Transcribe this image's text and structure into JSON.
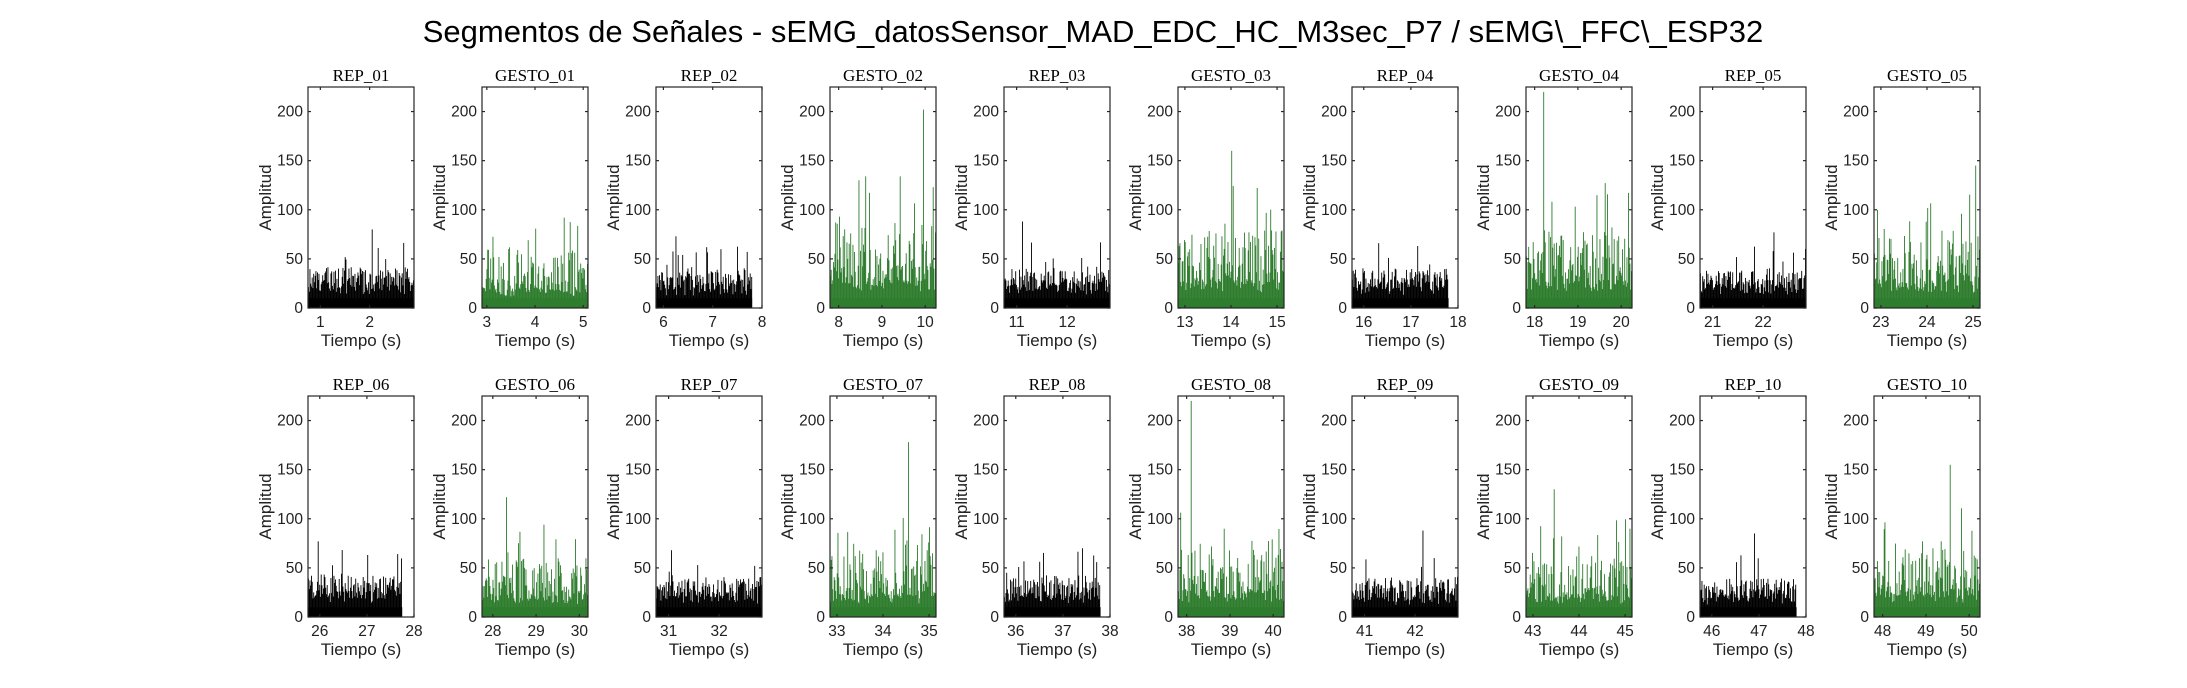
{
  "figure": {
    "title": "Segmentos de Señales - sEMG_datosSensor_MAD_EDC_HC_M3sec_P7 / sEMG\\_FFC\\_ESP32"
  },
  "colors": {
    "rep": "#000000",
    "gesto": "#2e7d2e"
  },
  "chart_data": [
    {
      "type": "bar",
      "title": "REP_01",
      "xlabel": "Tiempo (s)",
      "ylabel": "Amplitud",
      "xlim": [
        0.75,
        2.9
      ],
      "ylim": [
        0,
        225
      ],
      "xticks": [
        1,
        2
      ],
      "yticks": [
        0,
        50,
        100,
        150,
        200
      ],
      "t_start": 0.75,
      "t_end": 2.9,
      "mean": 28,
      "peak": 80,
      "peak_t": 2.05,
      "color": "rep"
    },
    {
      "type": "bar",
      "title": "GESTO_01",
      "xlabel": "Tiempo (s)",
      "ylabel": "Amplitud",
      "xlim": [
        2.9,
        5.1
      ],
      "ylim": [
        0,
        225
      ],
      "xticks": [
        3,
        4,
        5
      ],
      "yticks": [
        0,
        50,
        100,
        150,
        200
      ],
      "t_start": 2.9,
      "t_end": 5.1,
      "mean": 32,
      "peak": 92,
      "peak_t": 4.6,
      "color": "gesto"
    },
    {
      "type": "bar",
      "title": "REP_02",
      "xlabel": "Tiempo (s)",
      "ylabel": "Amplitud",
      "xlim": [
        5.85,
        8.0
      ],
      "ylim": [
        0,
        225
      ],
      "xticks": [
        6,
        7,
        8
      ],
      "yticks": [
        0,
        50,
        100,
        150,
        200
      ],
      "t_start": 5.85,
      "t_end": 7.8,
      "mean": 27,
      "peak": 73,
      "peak_t": 6.25,
      "color": "rep"
    },
    {
      "type": "bar",
      "title": "GESTO_02",
      "xlabel": "Tiempo (s)",
      "ylabel": "Amplitud",
      "xlim": [
        7.8,
        10.25
      ],
      "ylim": [
        0,
        225
      ],
      "xticks": [
        8,
        9,
        10
      ],
      "yticks": [
        0,
        50,
        100,
        150,
        200
      ],
      "t_start": 7.8,
      "t_end": 10.25,
      "mean": 48,
      "peak": 202,
      "peak_t": 9.95,
      "color": "gesto"
    },
    {
      "type": "bar",
      "title": "REP_03",
      "xlabel": "Tiempo (s)",
      "ylabel": "Amplitud",
      "xlim": [
        10.75,
        12.85
      ],
      "ylim": [
        0,
        225
      ],
      "xticks": [
        11,
        12
      ],
      "yticks": [
        0,
        50,
        100,
        150,
        200
      ],
      "t_start": 10.75,
      "t_end": 12.85,
      "mean": 28,
      "peak": 88,
      "peak_t": 11.1,
      "color": "rep"
    },
    {
      "type": "bar",
      "title": "GESTO_03",
      "xlabel": "Tiempo (s)",
      "ylabel": "Amplitud",
      "xlim": [
        12.85,
        15.15
      ],
      "ylim": [
        0,
        225
      ],
      "xticks": [
        13,
        14,
        15
      ],
      "yticks": [
        0,
        50,
        100,
        150,
        200
      ],
      "t_start": 12.85,
      "t_end": 15.15,
      "mean": 45,
      "peak": 160,
      "peak_t": 14.0,
      "color": "gesto"
    },
    {
      "type": "bar",
      "title": "REP_04",
      "xlabel": "Tiempo (s)",
      "ylabel": "Amplitud",
      "xlim": [
        15.75,
        18.0
      ],
      "ylim": [
        0,
        225
      ],
      "xticks": [
        16,
        17,
        18
      ],
      "yticks": [
        0,
        50,
        100,
        150,
        200
      ],
      "t_start": 15.75,
      "t_end": 17.8,
      "mean": 27,
      "peak": 66,
      "peak_t": 16.3,
      "color": "rep"
    },
    {
      "type": "bar",
      "title": "GESTO_04",
      "xlabel": "Tiempo (s)",
      "ylabel": "Amplitud",
      "xlim": [
        17.8,
        20.25
      ],
      "ylim": [
        0,
        225
      ],
      "xticks": [
        18,
        19,
        20
      ],
      "yticks": [
        0,
        50,
        100,
        150,
        200
      ],
      "t_start": 17.8,
      "t_end": 20.25,
      "mean": 46,
      "peak": 220,
      "peak_t": 18.2,
      "color": "gesto"
    },
    {
      "type": "bar",
      "title": "REP_05",
      "xlabel": "Tiempo (s)",
      "ylabel": "Amplitud",
      "xlim": [
        20.75,
        22.85
      ],
      "ylim": [
        0,
        225
      ],
      "xticks": [
        21,
        22
      ],
      "yticks": [
        0,
        50,
        100,
        150,
        200
      ],
      "t_start": 20.75,
      "t_end": 22.85,
      "mean": 27,
      "peak": 77,
      "peak_t": 22.2,
      "color": "rep"
    },
    {
      "type": "bar",
      "title": "GESTO_05",
      "xlabel": "Tiempo (s)",
      "ylabel": "Amplitud",
      "xlim": [
        22.85,
        25.15
      ],
      "ylim": [
        0,
        225
      ],
      "xticks": [
        23,
        24,
        25
      ],
      "yticks": [
        0,
        50,
        100,
        150,
        200
      ],
      "t_start": 22.85,
      "t_end": 25.15,
      "mean": 42,
      "peak": 145,
      "peak_t": 25.05,
      "color": "gesto"
    },
    {
      "type": "bar",
      "title": "REP_06",
      "xlabel": "Tiempo (s)",
      "ylabel": "Amplitud",
      "xlim": [
        25.75,
        28.0
      ],
      "ylim": [
        0,
        225
      ],
      "xticks": [
        26,
        27,
        28
      ],
      "yticks": [
        0,
        50,
        100,
        150,
        200
      ],
      "t_start": 25.75,
      "t_end": 27.75,
      "mean": 29,
      "peak": 77,
      "peak_t": 25.95,
      "color": "rep"
    },
    {
      "type": "bar",
      "title": "GESTO_06",
      "xlabel": "Tiempo (s)",
      "ylabel": "Amplitud",
      "xlim": [
        27.75,
        30.2
      ],
      "ylim": [
        0,
        225
      ],
      "xticks": [
        28,
        29,
        30
      ],
      "yticks": [
        0,
        50,
        100,
        150,
        200
      ],
      "t_start": 27.75,
      "t_end": 30.2,
      "mean": 35,
      "peak": 122,
      "peak_t": 28.3,
      "color": "gesto"
    },
    {
      "type": "bar",
      "title": "REP_07",
      "xlabel": "Tiempo (s)",
      "ylabel": "Amplitud",
      "xlim": [
        30.75,
        32.85
      ],
      "ylim": [
        0,
        225
      ],
      "xticks": [
        31,
        32
      ],
      "yticks": [
        0,
        50,
        100,
        150,
        200
      ],
      "t_start": 30.75,
      "t_end": 32.85,
      "mean": 28,
      "peak": 68,
      "peak_t": 31.05,
      "color": "rep"
    },
    {
      "type": "bar",
      "title": "GESTO_07",
      "xlabel": "Tiempo (s)",
      "ylabel": "Amplitud",
      "xlim": [
        32.85,
        35.15
      ],
      "ylim": [
        0,
        225
      ],
      "xticks": [
        33,
        34,
        35
      ],
      "yticks": [
        0,
        50,
        100,
        150,
        200
      ],
      "t_start": 32.85,
      "t_end": 35.15,
      "mean": 38,
      "peak": 178,
      "peak_t": 34.55,
      "color": "gesto"
    },
    {
      "type": "bar",
      "title": "REP_08",
      "xlabel": "Tiempo (s)",
      "ylabel": "Amplitud",
      "xlim": [
        35.75,
        38.0
      ],
      "ylim": [
        0,
        225
      ],
      "xticks": [
        36,
        37,
        38
      ],
      "yticks": [
        0,
        50,
        100,
        150,
        200
      ],
      "t_start": 35.75,
      "t_end": 37.8,
      "mean": 28,
      "peak": 70,
      "peak_t": 37.4,
      "color": "rep"
    },
    {
      "type": "bar",
      "title": "GESTO_08",
      "xlabel": "Tiempo (s)",
      "ylabel": "Amplitud",
      "xlim": [
        37.8,
        40.25
      ],
      "ylim": [
        0,
        225
      ],
      "xticks": [
        38,
        39,
        40
      ],
      "yticks": [
        0,
        50,
        100,
        150,
        200
      ],
      "t_start": 37.8,
      "t_end": 40.25,
      "mean": 42,
      "peak": 220,
      "peak_t": 38.1,
      "color": "gesto"
    },
    {
      "type": "bar",
      "title": "REP_09",
      "xlabel": "Tiempo (s)",
      "ylabel": "Amplitud",
      "xlim": [
        40.75,
        42.85
      ],
      "ylim": [
        0,
        225
      ],
      "xticks": [
        41,
        42
      ],
      "yticks": [
        0,
        50,
        100,
        150,
        200
      ],
      "t_start": 40.75,
      "t_end": 42.85,
      "mean": 27,
      "peak": 88,
      "peak_t": 42.15,
      "color": "rep"
    },
    {
      "type": "bar",
      "title": "GESTO_09",
      "xlabel": "Tiempo (s)",
      "ylabel": "Amplitud",
      "xlim": [
        42.85,
        45.15
      ],
      "ylim": [
        0,
        225
      ],
      "xticks": [
        43,
        44,
        45
      ],
      "yticks": [
        0,
        50,
        100,
        150,
        200
      ],
      "t_start": 42.85,
      "t_end": 45.15,
      "mean": 36,
      "peak": 130,
      "peak_t": 43.45,
      "color": "gesto"
    },
    {
      "type": "bar",
      "title": "REP_10",
      "xlabel": "Tiempo (s)",
      "ylabel": "Amplitud",
      "xlim": [
        45.75,
        48.0
      ],
      "ylim": [
        0,
        225
      ],
      "xticks": [
        46,
        47,
        48
      ],
      "yticks": [
        0,
        50,
        100,
        150,
        200
      ],
      "t_start": 45.75,
      "t_end": 47.8,
      "mean": 27,
      "peak": 85,
      "peak_t": 46.9,
      "color": "rep"
    },
    {
      "type": "bar",
      "title": "GESTO_10",
      "xlabel": "Tiempo (s)",
      "ylabel": "Amplitud",
      "xlim": [
        47.8,
        50.25
      ],
      "ylim": [
        0,
        225
      ],
      "xticks": [
        48,
        49,
        50
      ],
      "yticks": [
        0,
        50,
        100,
        150,
        200
      ],
      "t_start": 47.8,
      "t_end": 50.25,
      "mean": 40,
      "peak": 155,
      "peak_t": 49.55,
      "color": "gesto"
    }
  ]
}
